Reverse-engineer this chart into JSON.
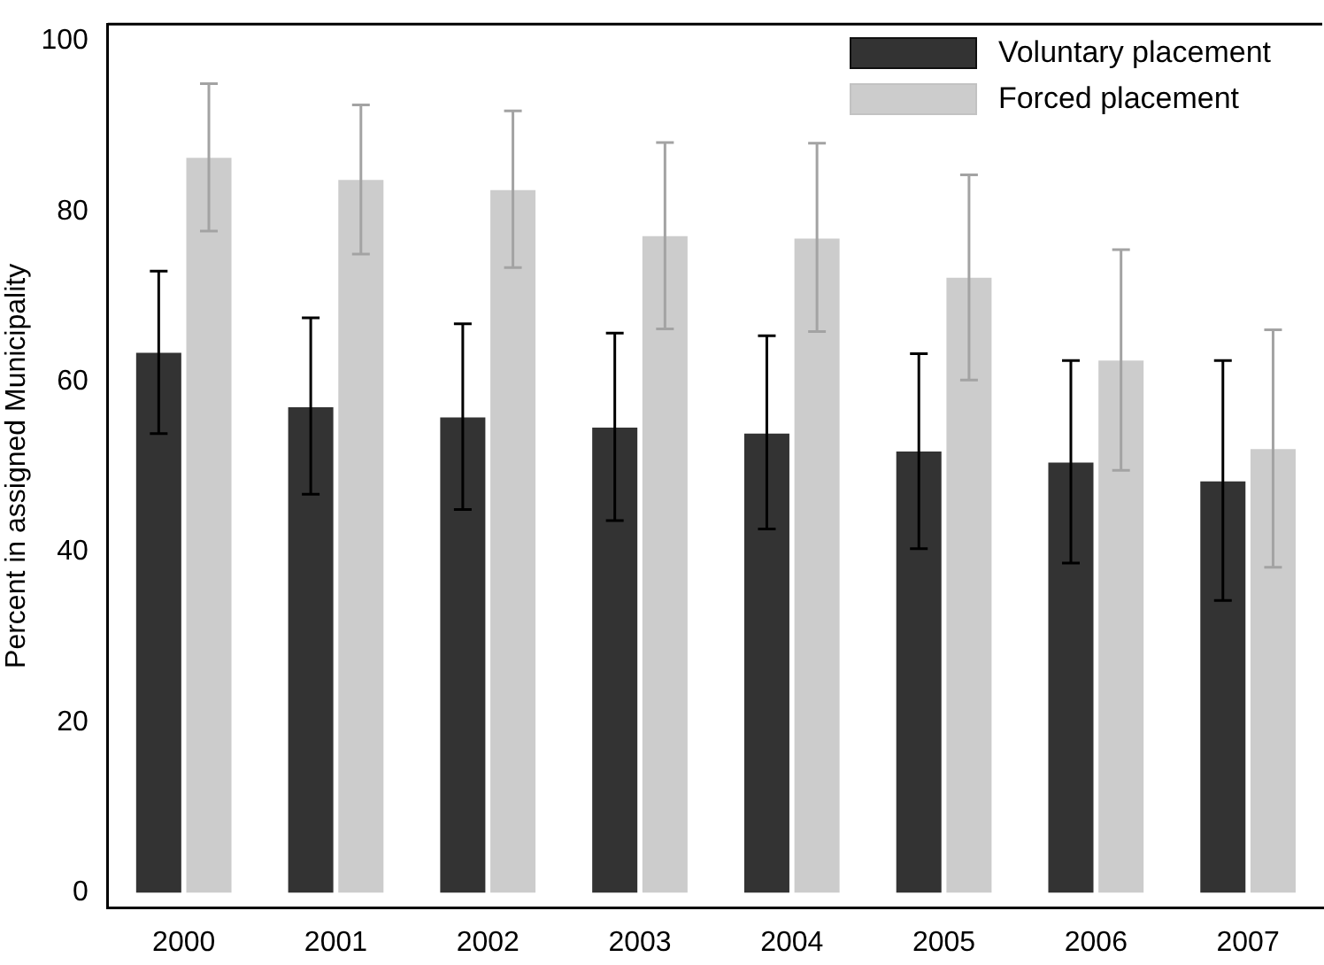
{
  "chart_data": {
    "type": "bar",
    "ylabel": "Percent in assigned Municipality",
    "categories": [
      "2000",
      "2001",
      "2002",
      "2003",
      "2004",
      "2005",
      "2006",
      "2007"
    ],
    "series": [
      {
        "name": "Voluntary placement",
        "color": "#333333",
        "values": [
          63.4,
          57.0,
          55.8,
          54.6,
          53.9,
          51.8,
          50.5,
          48.3
        ],
        "errors": [
          [
            53.9,
            73.0
          ],
          [
            46.8,
            67.5
          ],
          [
            45.0,
            66.8
          ],
          [
            43.7,
            65.7
          ],
          [
            42.7,
            65.4
          ],
          [
            40.4,
            63.3
          ],
          [
            38.7,
            62.5
          ],
          [
            34.3,
            62.5
          ]
        ]
      },
      {
        "name": "Forced placement",
        "color": "#cccccc",
        "values": [
          86.3,
          83.7,
          82.5,
          77.1,
          76.8,
          72.2,
          62.5,
          52.1
        ],
        "errors": [
          [
            77.7,
            95.0
          ],
          [
            75.0,
            92.5
          ],
          [
            73.4,
            91.8
          ],
          [
            66.2,
            88.1
          ],
          [
            65.9,
            88.0
          ],
          [
            60.2,
            84.3
          ],
          [
            49.6,
            75.5
          ],
          [
            38.2,
            66.1
          ]
        ]
      }
    ],
    "ylim": [
      -1.8,
      102
    ],
    "yticks": [
      0,
      20,
      40,
      60,
      80,
      100
    ],
    "grid": false,
    "legend": "top right"
  }
}
